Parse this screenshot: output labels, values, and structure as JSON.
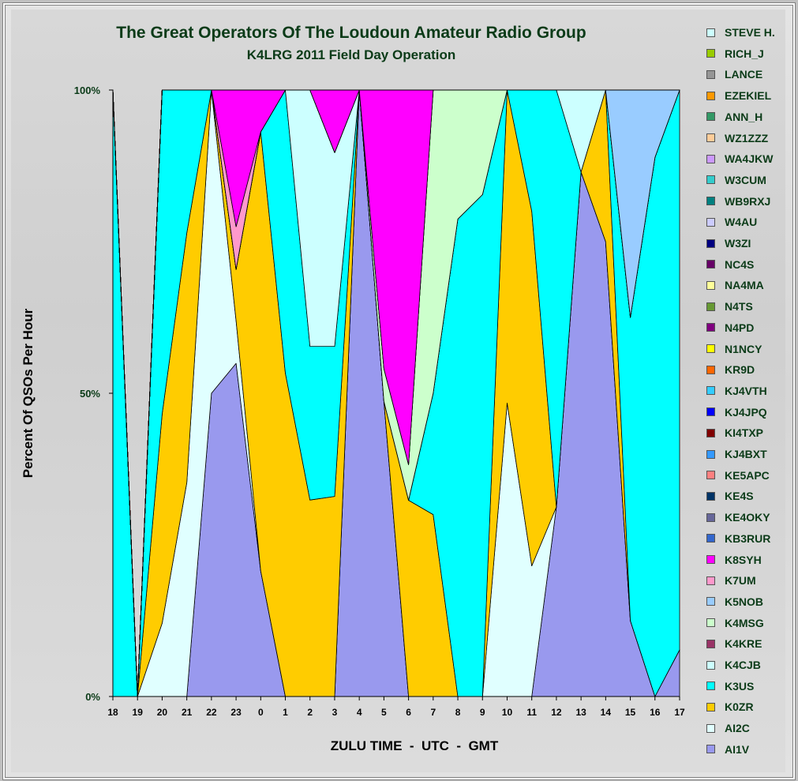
{
  "chart_data": {
    "type": "area",
    "stacked": "percent",
    "title": "The Great Operators Of The Loudoun Amateur Radio Group",
    "subtitle": "K4LRG 2011 Field Day Operation",
    "xlabel": "ZULU TIME  -  UTC  -  GMT",
    "ylabel": "Percent Of QSOs Per Hour",
    "y_ticks": [
      "0%",
      "50%",
      "100%"
    ],
    "ylim": [
      0,
      100
    ],
    "legend_position": "right",
    "categories": [
      "18",
      "19",
      "20",
      "21",
      "22",
      "23",
      "0",
      "1",
      "2",
      "3",
      "4",
      "5",
      "6",
      "7",
      "8",
      "9",
      "10",
      "11",
      "12",
      "13",
      "14",
      "15",
      "16",
      "17"
    ],
    "series": [
      {
        "name": "AI1V",
        "color": "#9999ee",
        "values": [
          0,
          0,
          0,
          0,
          18,
          39,
          6,
          0,
          0,
          0,
          45,
          18,
          0,
          0,
          0,
          0,
          0,
          0,
          10,
          32,
          36,
          6,
          0,
          2
        ]
      },
      {
        "name": "AI2C",
        "color": "#e0ffff",
        "values": [
          0,
          0,
          7,
          18,
          18,
          5,
          0,
          0,
          0,
          0,
          0,
          0,
          0,
          0,
          0,
          0,
          30,
          14,
          0,
          0,
          0,
          0,
          0,
          0
        ]
      },
      {
        "name": "K0ZR",
        "color": "#ffcc00",
        "values": [
          0,
          0,
          20,
          21,
          0,
          6,
          21,
          24,
          23,
          32,
          0,
          0,
          11,
          12,
          0,
          0,
          32,
          38,
          0,
          0,
          12,
          0,
          0,
          0
        ]
      },
      {
        "name": "K3US",
        "color": "#00ffff",
        "values": [
          35,
          0,
          31,
          12,
          0,
          0,
          0,
          21,
          18,
          24,
          0,
          0,
          0,
          8,
          37,
          24,
          0,
          13,
          22,
          0,
          0,
          24,
          24,
          24
        ]
      },
      {
        "name": "K4CJB",
        "color": "#ccffff",
        "values": [
          0,
          0,
          0,
          0,
          0,
          0,
          0,
          0,
          30,
          31,
          0,
          0,
          0,
          0,
          0,
          0,
          0,
          0,
          0,
          5,
          0,
          0,
          0,
          0
        ]
      },
      {
        "name": "K4KRE",
        "color": "#993366",
        "values": [
          0,
          0,
          0,
          0,
          0,
          0,
          0,
          0,
          0,
          0,
          0,
          0,
          0,
          0,
          0,
          0,
          0,
          0,
          0,
          0,
          0,
          0,
          0,
          0
        ]
      },
      {
        "name": "K4MSG",
        "color": "#ccffcc",
        "values": [
          0,
          0,
          0,
          0,
          0,
          0,
          0,
          0,
          0,
          0,
          0,
          2,
          2,
          20,
          10,
          5,
          0,
          0,
          0,
          0,
          0,
          0,
          0,
          0
        ]
      },
      {
        "name": "K5NOB",
        "color": "#99ccff",
        "values": [
          0,
          0,
          0,
          0,
          0,
          0,
          0,
          0,
          0,
          0,
          0,
          0,
          0,
          0,
          0,
          0,
          0,
          0,
          0,
          0,
          0,
          18,
          3,
          0
        ]
      },
      {
        "name": "K7UM",
        "color": "#ff99cc",
        "values": [
          0,
          0,
          0,
          0,
          0,
          5,
          0,
          0,
          0,
          0,
          0,
          0,
          0,
          0,
          0,
          0,
          0,
          0,
          0,
          0,
          0,
          0,
          0,
          0
        ]
      },
      {
        "name": "K8SYH",
        "color": "#ff00ff",
        "values": [
          0,
          0,
          0,
          0,
          0,
          16,
          2,
          0,
          0,
          10,
          0,
          17,
          21,
          0,
          0,
          0,
          0,
          0,
          0,
          0,
          0,
          0,
          0,
          0
        ]
      },
      {
        "name": "KB3RUR",
        "color": "#3366cc",
        "values": [
          0,
          0,
          0,
          0,
          0,
          0,
          0,
          0,
          0,
          0,
          0,
          0,
          0,
          0,
          0,
          0,
          0,
          0,
          0,
          0,
          0,
          0,
          0,
          0
        ]
      },
      {
        "name": "KE4OKY",
        "color": "#666699",
        "values": [
          0,
          0,
          0,
          0,
          0,
          0,
          0,
          0,
          0,
          0,
          0,
          0,
          0,
          0,
          0,
          0,
          0,
          0,
          0,
          0,
          0,
          0,
          0,
          0
        ]
      },
      {
        "name": "KE4S",
        "color": "#003366",
        "values": [
          0,
          0,
          0,
          0,
          0,
          0,
          0,
          0,
          0,
          0,
          0,
          0,
          0,
          0,
          0,
          0,
          0,
          0,
          0,
          0,
          0,
          0,
          0,
          0
        ]
      },
      {
        "name": "KE5APC",
        "color": "#ff8080",
        "values": [
          0,
          0,
          0,
          0,
          0,
          0,
          0,
          0,
          0,
          0,
          0,
          0,
          0,
          0,
          0,
          0,
          0,
          0,
          0,
          0,
          0,
          0,
          0,
          0
        ]
      },
      {
        "name": "KJ4BXT",
        "color": "#3399ff",
        "values": [
          0,
          0,
          0,
          0,
          0,
          0,
          0,
          0,
          0,
          0,
          0,
          0,
          0,
          0,
          0,
          0,
          0,
          0,
          0,
          0,
          0,
          0,
          0,
          0
        ]
      },
      {
        "name": "KI4TXP",
        "color": "#800000",
        "values": [
          0,
          0,
          0,
          0,
          0,
          0,
          0,
          0,
          0,
          0,
          0,
          0,
          0,
          0,
          0,
          0,
          0,
          0,
          0,
          0,
          0,
          0,
          0,
          0
        ]
      },
      {
        "name": "KJ4JPQ",
        "color": "#0000ff",
        "values": [
          0,
          0,
          0,
          0,
          0,
          0,
          0,
          0,
          0,
          0,
          0,
          0,
          0,
          0,
          0,
          0,
          0,
          0,
          0,
          0,
          0,
          0,
          0,
          0
        ]
      },
      {
        "name": "KJ4VTH",
        "color": "#33ccff",
        "values": [
          0,
          0,
          0,
          0,
          0,
          0,
          0,
          0,
          0,
          0,
          0,
          0,
          0,
          0,
          0,
          0,
          0,
          0,
          0,
          0,
          0,
          0,
          0,
          0
        ]
      },
      {
        "name": "KR9D",
        "color": "#ff6600",
        "values": [
          0,
          0,
          0,
          0,
          0,
          0,
          0,
          0,
          0,
          0,
          0,
          0,
          0,
          0,
          0,
          0,
          0,
          0,
          0,
          0,
          0,
          0,
          0,
          0
        ]
      },
      {
        "name": "N1NCY",
        "color": "#ffff00",
        "values": [
          0,
          0,
          0,
          0,
          0,
          0,
          0,
          0,
          0,
          0,
          0,
          0,
          0,
          0,
          0,
          0,
          0,
          0,
          0,
          0,
          0,
          0,
          0,
          0
        ]
      },
      {
        "name": "N4PD",
        "color": "#800080",
        "values": [
          0,
          0,
          0,
          0,
          0,
          0,
          0,
          0,
          0,
          0,
          0,
          0,
          0,
          0,
          0,
          0,
          0,
          0,
          0,
          0,
          0,
          0,
          0,
          0
        ]
      },
      {
        "name": "N4TS",
        "color": "#669933",
        "values": [
          0,
          0,
          0,
          0,
          0,
          0,
          0,
          0,
          0,
          0,
          0,
          0,
          0,
          0,
          0,
          0,
          0,
          0,
          0,
          0,
          0,
          0,
          0,
          0
        ]
      },
      {
        "name": "NA4MA",
        "color": "#ffff99",
        "values": [
          0,
          0,
          0,
          0,
          0,
          0,
          0,
          0,
          0,
          0,
          0,
          0,
          0,
          0,
          0,
          0,
          0,
          0,
          0,
          0,
          0,
          0,
          0,
          0
        ]
      },
      {
        "name": "NC4S",
        "color": "#660066",
        "values": [
          0,
          0,
          0,
          0,
          0,
          0,
          0,
          0,
          0,
          0,
          0,
          0,
          0,
          0,
          0,
          0,
          0,
          0,
          0,
          0,
          0,
          0,
          0,
          0
        ]
      },
      {
        "name": "W3ZI",
        "color": "#000080",
        "values": [
          0,
          0,
          0,
          0,
          0,
          0,
          0,
          0,
          0,
          0,
          0,
          0,
          0,
          0,
          0,
          0,
          0,
          0,
          0,
          0,
          0,
          0,
          0,
          0
        ]
      },
      {
        "name": "W4AU",
        "color": "#ccccff",
        "values": [
          0,
          0,
          0,
          0,
          0,
          0,
          0,
          0,
          0,
          0,
          0,
          0,
          0,
          0,
          0,
          0,
          0,
          0,
          0,
          0,
          0,
          0,
          0,
          0
        ]
      },
      {
        "name": "WB9RXJ",
        "color": "#008080",
        "values": [
          0,
          0,
          0,
          0,
          0,
          0,
          0,
          0,
          0,
          0,
          0,
          0,
          0,
          0,
          0,
          0,
          0,
          0,
          0,
          0,
          0,
          0,
          0,
          0
        ]
      },
      {
        "name": "W3CUM",
        "color": "#33cccc",
        "values": [
          0,
          0,
          0,
          0,
          0,
          0,
          0,
          0,
          0,
          0,
          0,
          0,
          0,
          0,
          0,
          0,
          0,
          0,
          0,
          0,
          0,
          0,
          0,
          0
        ]
      },
      {
        "name": "WA4JKW",
        "color": "#cc99ff",
        "values": [
          0,
          0,
          0,
          0,
          0,
          0,
          0,
          0,
          0,
          0,
          0,
          0,
          0,
          0,
          0,
          0,
          0,
          0,
          0,
          0,
          0,
          0,
          0,
          0
        ]
      },
      {
        "name": "WZ1ZZZ",
        "color": "#ffcc99",
        "values": [
          0,
          0,
          0,
          0,
          0,
          0,
          0,
          0,
          0,
          0,
          0,
          0,
          0,
          0,
          0,
          0,
          0,
          0,
          0,
          0,
          0,
          0,
          0,
          0
        ]
      },
      {
        "name": "ANN_H",
        "color": "#339966",
        "values": [
          0,
          0,
          0,
          0,
          0,
          0,
          0,
          0,
          0,
          0,
          0,
          0,
          0,
          0,
          0,
          0,
          0,
          0,
          0,
          0,
          0,
          0,
          0,
          0
        ]
      },
      {
        "name": "EZEKIEL",
        "color": "#ff9900",
        "values": [
          0,
          0,
          0,
          0,
          0,
          0,
          0,
          0,
          0,
          0,
          0,
          0,
          0,
          0,
          0,
          0,
          0,
          0,
          0,
          0,
          0,
          0,
          0,
          0
        ]
      },
      {
        "name": "LANCE",
        "color": "#969696",
        "values": [
          0,
          0,
          0,
          0,
          0,
          0,
          0,
          0,
          0,
          0,
          0,
          0,
          0,
          0,
          0,
          0,
          0,
          0,
          0,
          0,
          0,
          0,
          0,
          0
        ]
      },
      {
        "name": "RICH_J",
        "color": "#99cc00",
        "values": [
          0,
          0,
          0,
          0,
          0,
          0,
          0,
          0,
          0,
          0,
          0,
          0,
          0,
          0,
          0,
          0,
          0,
          0,
          0,
          0,
          0,
          0,
          0,
          0
        ]
      },
      {
        "name": "STEVE H.",
        "color": "#ccffff",
        "values": [
          0,
          0,
          0,
          0,
          0,
          0,
          0,
          0,
          0,
          0,
          0,
          0,
          0,
          0,
          0,
          0,
          0,
          0,
          0,
          0,
          0,
          0,
          0,
          0
        ]
      }
    ]
  }
}
